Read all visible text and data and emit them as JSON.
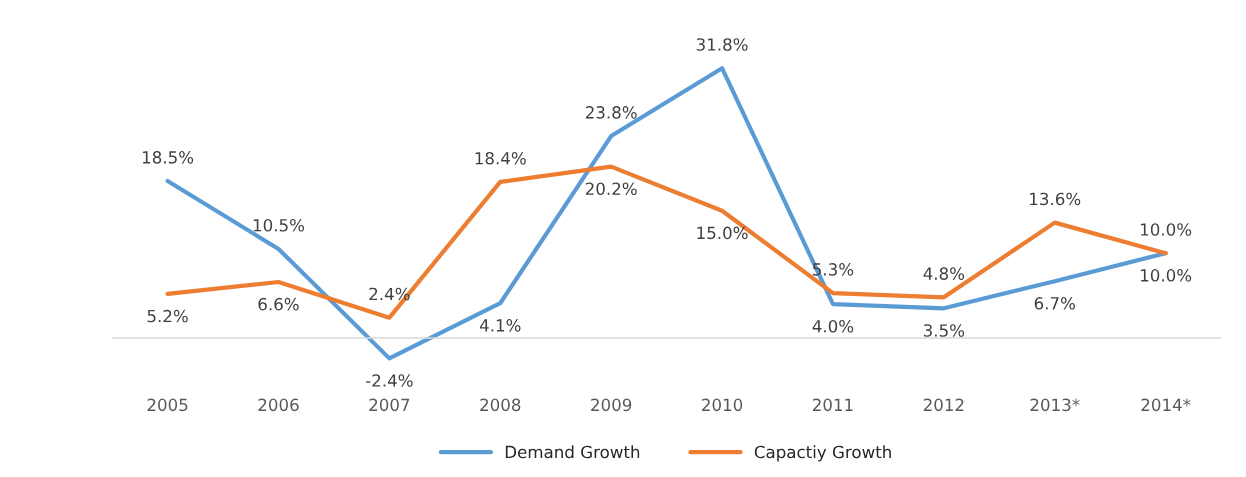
{
  "chart_data": {
    "type": "line",
    "categories": [
      "2005",
      "2006",
      "2007",
      "2008",
      "2009",
      "2010",
      "2011",
      "2012",
      "2013*",
      "2014*"
    ],
    "series": [
      {
        "name": "Demand Growth",
        "color": "#5b9bd5",
        "values": [
          18.5,
          10.5,
          -2.4,
          4.1,
          23.8,
          31.8,
          4.0,
          3.5,
          6.7,
          10.0
        ],
        "value_labels": [
          "18.5%",
          "10.5%",
          "-2.4%",
          "4.1%",
          "23.8%",
          "31.8%",
          "4.0%",
          "3.5%",
          "6.7%",
          "10.0%"
        ]
      },
      {
        "name": "Capactiy Growth",
        "color": "#ed7d31",
        "values": [
          5.2,
          6.6,
          2.4,
          18.4,
          20.2,
          15.0,
          5.3,
          4.8,
          13.6,
          10.0
        ],
        "value_labels": [
          "5.2%",
          "6.6%",
          "2.4%",
          "18.4%",
          "20.2%",
          "15.0%",
          "5.3%",
          "4.8%",
          "13.6%",
          "10.0%"
        ]
      }
    ],
    "tick_labels": "x",
    "grid": false,
    "legend": "bottom",
    "marker": "none",
    "line_style": "solid"
  }
}
